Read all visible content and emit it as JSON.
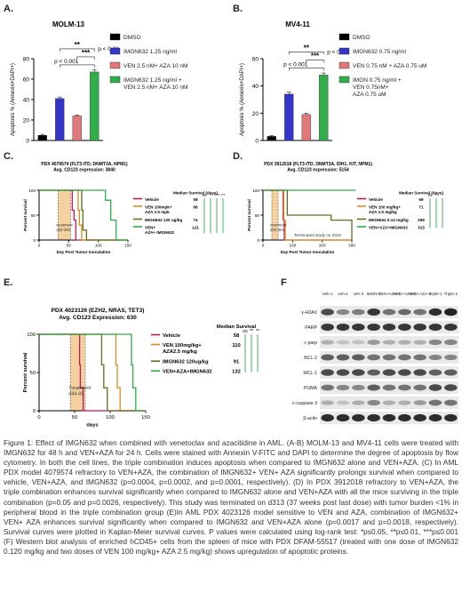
{
  "panel_letters": {
    "a": "A.",
    "b": "B.",
    "c": "C.",
    "d": "D.",
    "e": "E.",
    "f": "F"
  },
  "colors": {
    "dmso": "#000000",
    "imgn": "#3535c9",
    "ven": "#e07a7a",
    "triple": "#2fae4a",
    "vehicle": "#c2185b",
    "venaza": "#e08a1e",
    "imgn_line": "#6b6b1e",
    "shade": "#f6d1a0"
  },
  "chart_data": [
    {
      "id": "A",
      "type": "bar",
      "title": "MOLM-13",
      "ylabel": "Apoptosis % (Annexin+DAPI+)",
      "ylim": [
        0,
        80
      ],
      "yticks": [
        0,
        20,
        40,
        60,
        80
      ],
      "categories": [
        "DMSO",
        "IMGN632 1.25 ng/ml",
        "VEN 2.5 nM+ AZA 10 nM",
        "IMGN632 1.25 ng/ml + VEN 2.5 nM+ AZA 10 nM"
      ],
      "values": [
        5,
        41,
        24,
        67
      ],
      "errors": [
        1,
        1.5,
        1,
        2
      ],
      "legend": [
        "DMSO",
        "IMGN632 1.25 ng/ml",
        "VEN 2.5 nM+ AZA 10 nM",
        "IMGN632 1.25 ng/ml +\nVEN 2.5 nM+ AZA 10 nM"
      ],
      "sig": [
        {
          "text": "p < 0.001",
          "from": 1,
          "to": 3,
          "level": 0
        },
        {
          "text": "***",
          "from": 2,
          "to": 3,
          "level": 1
        },
        {
          "text": "**",
          "from": 1,
          "to": 3,
          "level": 2
        },
        {
          "text": "p < 0.01",
          "from": 1,
          "to": 3,
          "level": 2,
          "side": true
        }
      ]
    },
    {
      "id": "B",
      "type": "bar",
      "title": "MV4-11",
      "ylabel": "Apoptosis % (Annexin+DAPI+)",
      "ylim": [
        0,
        60
      ],
      "yticks": [
        0,
        20,
        40,
        60
      ],
      "categories": [
        "DMSO",
        "IMGN632 0.75 ng/ml",
        "VEN 0.75 nM + AZA 0.75 uM",
        "IMGN 0.75 ng/ml + VEN 0.75nM+ AZA 0.75 uM"
      ],
      "values": [
        3,
        34,
        19,
        48
      ],
      "errors": [
        0.5,
        1.5,
        1,
        1.5
      ],
      "legend": [
        "DMSO",
        "IMGN632 0.75 ng/ml",
        "VEN 0.75 nM + AZA 0.75 uM",
        "IMGN 0.75 ng/ml +\nVEN 0.75nM+\nAZA 0.75 uM"
      ],
      "sig": [
        {
          "text": "p < 0.001",
          "from": 1,
          "to": 3,
          "level": 0
        },
        {
          "text": "***",
          "from": 2,
          "to": 3,
          "level": 1
        },
        {
          "text": "**",
          "from": 1,
          "to": 3,
          "level": 2
        },
        {
          "text": "p < 0.01",
          "from": 1,
          "to": 3,
          "level": 2,
          "side": true
        }
      ]
    },
    {
      "id": "C",
      "type": "line",
      "title": "PDX 4079574 (FLT3-ITD, DNMT3A, NPM1)",
      "subtitle": "Avg. CD123 expression: 3840",
      "xlabel": "Day Post Tumor Inoculation",
      "ylabel": "Percent survival",
      "xlim": [
        0,
        150
      ],
      "xticks": [
        0,
        50,
        100,
        150
      ],
      "ylim": [
        0,
        100
      ],
      "yticks": [
        0,
        50,
        100
      ],
      "treatment": {
        "label": "treatment d32-d53",
        "x0": 32,
        "x1": 53
      },
      "legend_header": "Median Survival (days)",
      "series": [
        {
          "name": "Vehicle",
          "median": "59",
          "color_key": "vehicle",
          "x": [
            0,
            55,
            56,
            59,
            62,
            150
          ],
          "y": [
            100,
            100,
            60,
            40,
            0,
            0
          ]
        },
        {
          "name": "VEN 100mpk+ AZA 2.5 mpk",
          "median": "68",
          "color_key": "venaza",
          "x": [
            0,
            64,
            66,
            68,
            72,
            150
          ],
          "y": [
            100,
            100,
            60,
            30,
            0,
            0
          ]
        },
        {
          "name": "IMGN632 120 ug/kg",
          "median": "74",
          "color_key": "imgn_line",
          "x": [
            0,
            70,
            72,
            74,
            80,
            150
          ],
          "y": [
            100,
            100,
            60,
            20,
            0,
            0
          ]
        },
        {
          "name": "VEN+ AZA+ IMGN632",
          "median": "121",
          "color_key": "triple",
          "x": [
            0,
            110,
            112,
            121,
            130,
            150
          ],
          "y": [
            100,
            100,
            80,
            40,
            0,
            0
          ]
        }
      ],
      "sig_right": [
        "ns",
        "*",
        "****",
        "***"
      ]
    },
    {
      "id": "D",
      "type": "line",
      "title": "PDX 3912018 (FLT3-ITD, DNMT3A, IDH1, KIT, NPM1)",
      "subtitle": "Avg. CD123 expression: 5154",
      "xlabel": "Day Post Tumor Inoculation",
      "ylabel": "Percent survival",
      "xlim": [
        0,
        300
      ],
      "xticks": [
        0,
        100,
        200,
        300
      ],
      "ylim": [
        0,
        100
      ],
      "yticks": [
        0,
        50,
        100
      ],
      "treatment": {
        "label": "treatment d30-d51",
        "x0": 30,
        "x1": 51
      },
      "note": "Terminated study on d313",
      "legend_header": "Median Survival (days)",
      "series": [
        {
          "name": "Vehicle",
          "median": "69",
          "color_key": "vehicle",
          "x": [
            0,
            66,
            68,
            72,
            300
          ],
          "y": [
            100,
            100,
            40,
            0,
            0
          ]
        },
        {
          "name": "VEN 100 mg/kg+ AZA 2.5 mg/kg",
          "median": "71",
          "color_key": "venaza",
          "x": [
            0,
            68,
            70,
            75,
            300
          ],
          "y": [
            100,
            100,
            40,
            0,
            0
          ]
        },
        {
          "name": "IMGN632 0.12 mg/kg",
          "median": "259",
          "color_key": "imgn_line",
          "x": [
            0,
            80,
            82,
            200,
            230,
            259,
            300
          ],
          "y": [
            100,
            100,
            50,
            50,
            40,
            40,
            0
          ]
        },
        {
          "name": "VEN+AZA+IMGN632",
          "median": "313",
          "color_key": "triple",
          "x": [
            0,
            313
          ],
          "y": [
            100,
            100
          ]
        }
      ],
      "sig_right": [
        "ns",
        "**",
        "*"
      ]
    },
    {
      "id": "E",
      "type": "line",
      "title": "PDX 4023126 (EZH2, NRAS, TET3)",
      "subtitle": "Avg. CD123 Expression: 630",
      "xlabel": "days",
      "ylabel": "Percent survival",
      "xlim": [
        0,
        150
      ],
      "xticks": [
        0,
        50,
        100,
        150
      ],
      "ylim": [
        0,
        100
      ],
      "yticks": [
        0,
        50,
        100
      ],
      "treatment": {
        "label": "Treatment d44-65",
        "x0": 44,
        "x1": 65
      },
      "legend_header": "Median Survival",
      "series": [
        {
          "name": "Vehicle",
          "median": "58",
          "color_key": "vehicle",
          "x": [
            0,
            55,
            57,
            58,
            62,
            150
          ],
          "y": [
            100,
            100,
            60,
            30,
            0,
            0
          ]
        },
        {
          "name": "VEN 100mg/kg+ AZA2.5 mg/kg",
          "median": "110",
          "color_key": "venaza",
          "x": [
            0,
            106,
            108,
            110,
            114,
            150
          ],
          "y": [
            100,
            100,
            60,
            30,
            0,
            0
          ]
        },
        {
          "name": "IMGN632 120ug/kg",
          "median": "91",
          "color_key": "imgn_line",
          "x": [
            0,
            86,
            88,
            91,
            96,
            150
          ],
          "y": [
            100,
            100,
            60,
            30,
            0,
            0
          ]
        },
        {
          "name": "VEN+AZA+IMGN632",
          "median": "132",
          "color_key": "triple",
          "x": [
            0,
            128,
            130,
            132,
            136,
            150
          ],
          "y": [
            100,
            100,
            60,
            30,
            0,
            0
          ]
        }
      ],
      "sig_right": [
        "ns",
        "**",
        "**"
      ]
    }
  ],
  "western": {
    "lanes": [
      "Veh-1",
      "veh-2",
      "veh-3",
      "IMGN-1",
      "VEN +AZA-1",
      "VEN +AZA-2",
      "VEN +AZA-3",
      "Triple-1",
      "Triple-2"
    ],
    "bands": [
      "γ-H2AX",
      "PARP",
      "c-parp",
      "BCL-2",
      "MCL-1",
      "PUMA",
      "c-caspase 3",
      "β-actin"
    ]
  },
  "caption": "Figure 1: Effect of IMGN632 when combined with venetoclax and azacitidine in AML. (A-B) MOLM-13 and MV4-11 cells were treated with IMGN632 for 48 h and VEN+AZA for 24 h. Cells were stained with Annexin V-FITC and DAPI to determine the degree of apoptosis by flow cytometry. In both the cell lines, the triple combination induces apoptosis when compared to IMGN632 alone and VEN+AZA. (C) In AML PDX model 4079574 refractory to VEN+AZA, the combination of IMGN632+ VEN+ AZA significantly prolongs survival when compared to vehicle, VEN+AZA, and IMGN632 (p=0.0004, p=0.0002, and p=0.0001, respectively). (D) In PDX 3912018 refractory to VEN+AZA, the triple combination enhances survival significantly when compared to IMGN632 alone and VEN+AZA with all the mice surviving in the triple combination (p=0.05 and p=0.0026, respectively). This study was terminated on d313 (37 weeks post last dose) with tumor burden <1% in peripheral blood in the triple combination group (E)In AML PDX 4023126 model sensitive to VEN and AZA, combination of IMGN632+ VEN+ AZA enhances survival significantly when compared to IMGN632 and VEN+AZA alone (p=0.0017 and p=0.0018, respectively). Survival curves were plotted in Kaplan-Meier survival curves. P values were calculated using log-rank test: *ps0.05, **p≤0.01, ***p≤0.001 (F) Western blot analysis of enriched hCD45+ cells from the spleen of mice with PDX DFAM-55517 (treated with one dose of IMGN632 0.120 mg/kg and two doses of VEN 100 mg/kg+ AZA 2.5 mg/kg) shows upregulation of apoptotic proteins."
}
